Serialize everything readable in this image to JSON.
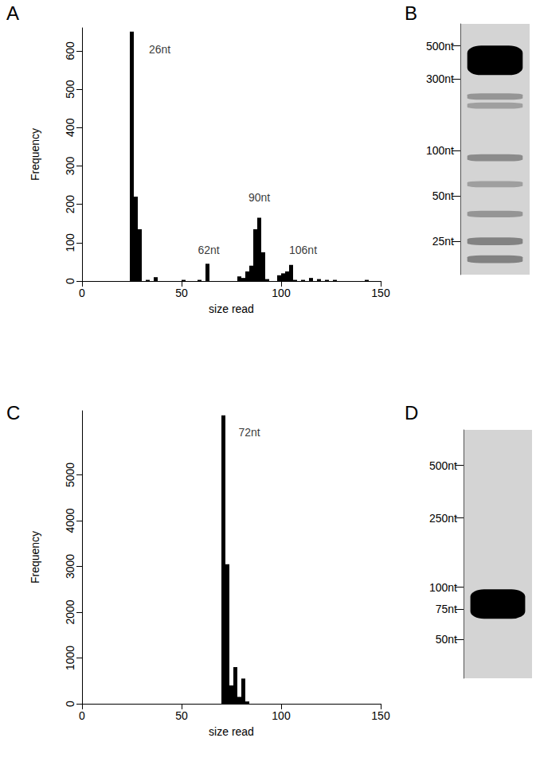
{
  "chart_data": [
    {
      "type": "histogram",
      "title": "A",
      "x_label": "size read",
      "y_label": "Frequency",
      "bins": [
        20,
        22,
        24,
        26,
        28,
        30,
        32,
        34,
        36,
        38,
        40,
        42,
        44,
        46,
        48,
        50,
        52,
        54,
        56,
        58,
        60,
        62,
        64,
        66,
        68,
        70,
        72,
        74,
        76,
        78,
        80,
        82,
        84,
        86,
        88,
        90,
        92,
        94,
        96,
        98,
        100,
        102,
        104,
        106,
        108,
        110,
        112,
        114,
        116,
        118,
        120,
        122,
        124,
        126,
        128,
        130,
        132,
        134,
        136,
        138,
        140,
        142,
        144,
        146,
        148,
        150
      ],
      "values": [
        0,
        0,
        650,
        220,
        135,
        0,
        3,
        0,
        10,
        0,
        0,
        0,
        0,
        0,
        0,
        3,
        0,
        0,
        0,
        3,
        0,
        45,
        0,
        0,
        0,
        0,
        0,
        0,
        0,
        12,
        8,
        25,
        40,
        135,
        165,
        75,
        5,
        0,
        0,
        15,
        20,
        25,
        42,
        3,
        0,
        3,
        0,
        8,
        0,
        5,
        0,
        3,
        0,
        3,
        0,
        0,
        0,
        0,
        0,
        0,
        0,
        3,
        0,
        0,
        0
      ],
      "color": "#000000",
      "xlim": [
        0,
        150
      ],
      "xticks": [
        0,
        50,
        100,
        150
      ],
      "ylim": [
        0,
        660
      ],
      "yticks": [
        0,
        100,
        200,
        300,
        400,
        500,
        600
      ],
      "grid": false,
      "annotations": [
        {
          "text": "26nt",
          "x": 39,
          "y": 604
        },
        {
          "text": "62nt",
          "x": 63.6,
          "y": 81
        },
        {
          "text": "90nt",
          "x": 89,
          "y": 217
        },
        {
          "text": "106nt",
          "x": 111,
          "y": 81
        }
      ]
    },
    {
      "type": "gel",
      "title": "B",
      "log": "y",
      "color": "#000000",
      "ylim": [
        15,
        700
      ],
      "yticks": [
        {
          "value": 500,
          "label": "500nt"
        },
        {
          "value": 300,
          "label": "300nt"
        },
        {
          "value": 100,
          "label": "100nt"
        },
        {
          "value": 50,
          "label": "50nt"
        },
        {
          "value": 25,
          "label": "25nt"
        }
      ],
      "bands": [
        {
          "size": 400,
          "intensity": 1.0
        },
        {
          "size": 230,
          "intensity": 0.2
        },
        {
          "size": 200,
          "intensity": 0.15
        },
        {
          "size": 90,
          "intensity": 0.25
        },
        {
          "size": 60,
          "intensity": 0.15
        },
        {
          "size": 38,
          "intensity": 0.2
        },
        {
          "size": 25,
          "intensity": 0.3
        },
        {
          "size": 19,
          "intensity": 0.3
        }
      ]
    },
    {
      "type": "histogram",
      "title": "C",
      "x_label": "size read",
      "y_label": "Frequency",
      "bins": [
        60,
        62,
        64,
        66,
        68,
        70,
        72,
        74,
        76,
        78,
        80,
        82,
        84,
        86,
        88,
        90
      ],
      "values": [
        0,
        0,
        0,
        0,
        0,
        6300,
        3050,
        400,
        800,
        150,
        550,
        50,
        0,
        0,
        0
      ],
      "color": "#000000",
      "xlim": [
        0,
        150
      ],
      "xticks": [
        0,
        50,
        100,
        150
      ],
      "ylim": [
        0,
        6400
      ],
      "yticks": [
        0,
        1000,
        2000,
        3000,
        4000,
        5000
      ],
      "grid": false,
      "annotations": [
        {
          "text": "72nt",
          "x": 84,
          "y": 5937
        }
      ]
    },
    {
      "type": "gel",
      "title": "D",
      "log": "y",
      "color": "#000000",
      "ylim": [
        30,
        800
      ],
      "yticks": [
        {
          "value": 500,
          "label": "500nt"
        },
        {
          "value": 250,
          "label": "250nt"
        },
        {
          "value": 100,
          "label": "100nt"
        },
        {
          "value": 75,
          "label": "75nt"
        },
        {
          "value": 50,
          "label": "50nt"
        }
      ],
      "bands": [
        {
          "size": 80,
          "intensity": 1.0
        }
      ]
    }
  ]
}
